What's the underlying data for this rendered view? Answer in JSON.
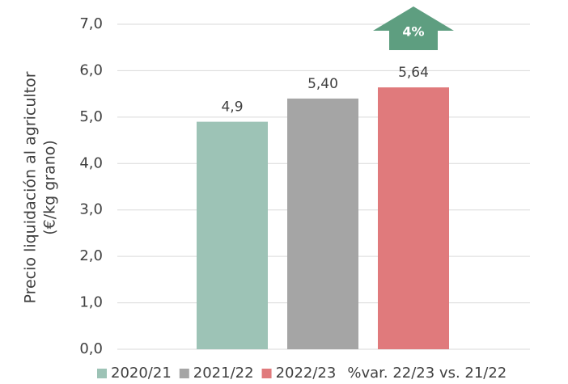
{
  "chart_data": {
    "type": "bar",
    "ylabel": [
      "Precio liquidación al agricultor",
      "(€/kg grano)"
    ],
    "categories": [
      null
    ],
    "series": [
      {
        "name": "2020/21",
        "color": "#9dc3b6",
        "values": [
          4.9
        ],
        "value_labels": [
          "4,9"
        ]
      },
      {
        "name": "2021/22",
        "color": "#a5a5a5",
        "values": [
          5.4
        ],
        "value_labels": [
          "5,40"
        ]
      },
      {
        "name": "2022/23",
        "color": "#e07a7c",
        "values": [
          5.64
        ],
        "value_labels": [
          "5,64"
        ]
      }
    ],
    "change": {
      "name": "%var. 22/23 vs. 21/22",
      "label": "4%",
      "color": "#5e9e80"
    },
    "ylim": [
      0,
      7
    ],
    "yticks": [
      {
        "value": 0,
        "label": "0,0"
      },
      {
        "value": 1,
        "label": "1,0"
      },
      {
        "value": 2,
        "label": "2,0"
      },
      {
        "value": 3,
        "label": "3,0"
      },
      {
        "value": 4,
        "label": "4,0"
      },
      {
        "value": 5,
        "label": "5,0"
      },
      {
        "value": 6,
        "label": "6,0"
      },
      {
        "value": 7,
        "label": "7,0"
      }
    ],
    "grid": true
  }
}
